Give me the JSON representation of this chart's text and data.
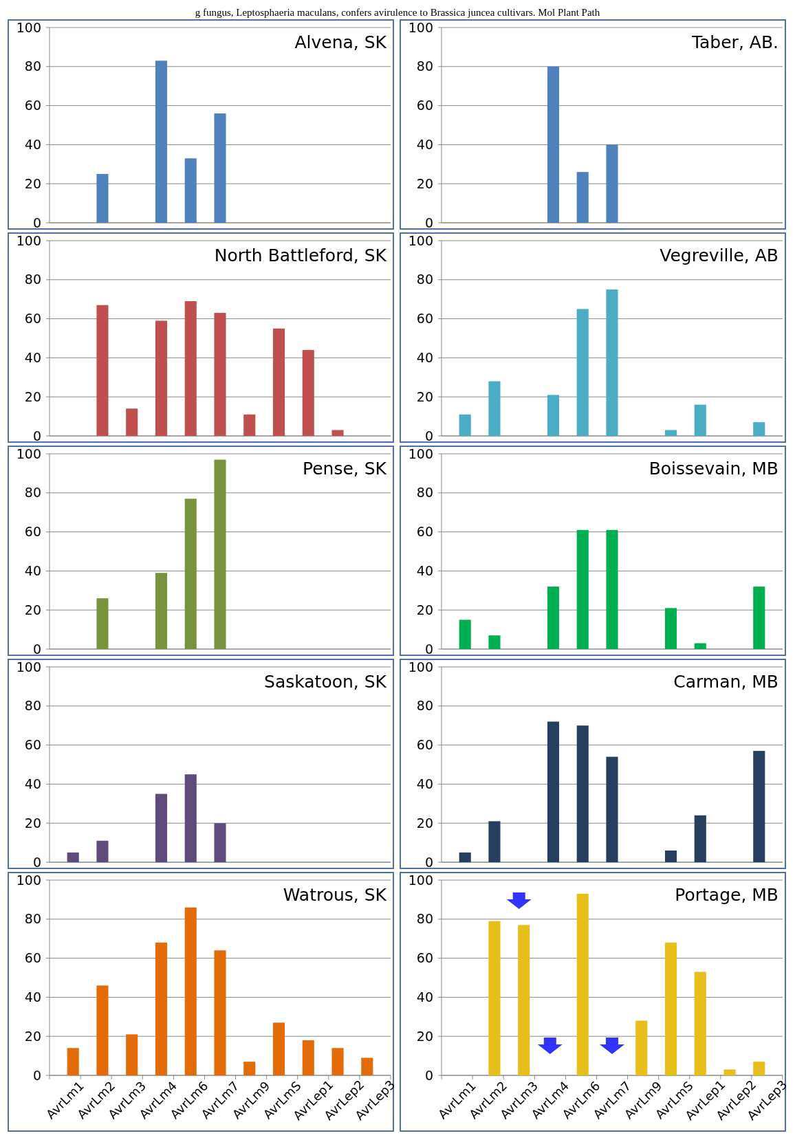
{
  "chart_data": [
    {
      "type": "bar",
      "title": "Alvena, SK",
      "annotations": [
        "g fungus, Leptosphaeria maculans, confers avirulence to Brassica juncea cultivars. Mol Plant Path"
      ],
      "categories": [
        null,
        null,
        null,
        null,
        null,
        null,
        null,
        null,
        null,
        null,
        null
      ],
      "values": [
        0,
        25,
        0,
        83,
        33,
        56,
        0,
        0,
        0,
        0,
        0
      ],
      "color": "#4f81bd",
      "ylim": [
        0,
        100
      ],
      "yticks": [
        0,
        20,
        40,
        60,
        80,
        100
      ],
      "grid": "y",
      "tick_labels": "y"
    },
    {
      "type": "bar",
      "title": "Taber, AB.",
      "categories": [
        null,
        null,
        null,
        null,
        null,
        null,
        null,
        null,
        null,
        null,
        null
      ],
      "values": [
        0,
        0,
        0,
        80,
        26,
        40,
        0,
        0,
        0,
        0,
        0
      ],
      "color": "#4f81bd",
      "ylim": [
        0,
        100
      ],
      "yticks": [
        0,
        20,
        40,
        60,
        80,
        100
      ],
      "grid": "y",
      "tick_labels": "y"
    },
    {
      "type": "bar",
      "title": "North Battleford, SK",
      "categories": [
        null,
        null,
        null,
        null,
        null,
        null,
        null,
        null,
        null,
        null,
        null
      ],
      "values": [
        0,
        67,
        14,
        59,
        69,
        63,
        11,
        55,
        44,
        3,
        0
      ],
      "color": "#c0504d",
      "ylim": [
        0,
        100
      ],
      "yticks": [
        0,
        20,
        40,
        60,
        80,
        100
      ],
      "grid": "y",
      "tick_labels": "y"
    },
    {
      "type": "bar",
      "title": "Vegreville, AB",
      "categories": [
        null,
        null,
        null,
        null,
        null,
        null,
        null,
        null,
        null,
        null,
        null
      ],
      "values": [
        11,
        28,
        0,
        21,
        65,
        75,
        0,
        3,
        16,
        0,
        7
      ],
      "color": "#4bacc6",
      "ylim": [
        0,
        100
      ],
      "yticks": [
        0,
        20,
        40,
        60,
        80,
        100
      ],
      "grid": "y",
      "tick_labels": "y"
    },
    {
      "type": "bar",
      "title": "Pense, SK",
      "categories": [
        null,
        null,
        null,
        null,
        null,
        null,
        null,
        null,
        null,
        null,
        null
      ],
      "values": [
        0,
        26,
        0,
        39,
        77,
        97,
        0,
        0,
        0,
        0,
        0
      ],
      "color": "#77933c",
      "ylim": [
        0,
        100
      ],
      "yticks": [
        0,
        20,
        40,
        60,
        80,
        100
      ],
      "grid": "y",
      "tick_labels": "y"
    },
    {
      "type": "bar",
      "title": "Boissevain, MB",
      "categories": [
        null,
        null,
        null,
        null,
        null,
        null,
        null,
        null,
        null,
        null,
        null
      ],
      "values": [
        15,
        7,
        0,
        32,
        61,
        61,
        0,
        21,
        3,
        0,
        32
      ],
      "color": "#00b050",
      "ylim": [
        0,
        100
      ],
      "yticks": [
        0,
        20,
        40,
        60,
        80,
        100
      ],
      "grid": "y",
      "tick_labels": "y"
    },
    {
      "type": "bar",
      "title": "Saskatoon, SK",
      "categories": [
        null,
        null,
        null,
        null,
        null,
        null,
        null,
        null,
        null,
        null,
        null
      ],
      "values": [
        5,
        11,
        0,
        35,
        45,
        20,
        0,
        0,
        0,
        0,
        0
      ],
      "color": "#604a7b",
      "ylim": [
        0,
        100
      ],
      "yticks": [
        0,
        20,
        40,
        60,
        80,
        100
      ],
      "grid": "y",
      "tick_labels": "y"
    },
    {
      "type": "bar",
      "title": "Carman, MB",
      "categories": [
        null,
        null,
        null,
        null,
        null,
        null,
        null,
        null,
        null,
        null,
        null
      ],
      "values": [
        5,
        21,
        0,
        72,
        70,
        54,
        0,
        6,
        24,
        0,
        57
      ],
      "color": "#243f60",
      "ylim": [
        0,
        100
      ],
      "yticks": [
        0,
        20,
        40,
        60,
        80,
        100
      ],
      "grid": "y",
      "tick_labels": "y"
    },
    {
      "type": "bar",
      "title": "Watrous, SK",
      "categories": [
        "AvrLm1",
        "AvrLm2",
        "AvrLm3",
        "AvrLm4",
        "AvrLm6",
        "AvrLm7",
        "AvrLm9",
        "AvrLmS",
        "AvrLep1",
        "AvrLep2",
        "AvrLep3"
      ],
      "values": [
        14,
        46,
        21,
        68,
        86,
        64,
        7,
        27,
        18,
        14,
        9
      ],
      "color": "#e36c09",
      "ylim": [
        0,
        100
      ],
      "yticks": [
        0,
        20,
        40,
        60,
        80,
        100
      ],
      "grid": "y"
    },
    {
      "type": "bar",
      "title": "Portage, MB",
      "categories": [
        "AvrLm1",
        "AvrLm2",
        "AvrLm3",
        "AvrLm4",
        "AvrLm6",
        "AvrLm7",
        "AvrLm9",
        "AvrLmS",
        "AvrLep1",
        "AvrLep2",
        "AvrLep3"
      ],
      "values": [
        0,
        79,
        77,
        0,
        93,
        0,
        28,
        68,
        53,
        3,
        7
      ],
      "color": "#e8bf1a",
      "ylim": [
        0,
        100
      ],
      "yticks": [
        0,
        20,
        40,
        60,
        80,
        100
      ],
      "grid": "y"
    }
  ]
}
